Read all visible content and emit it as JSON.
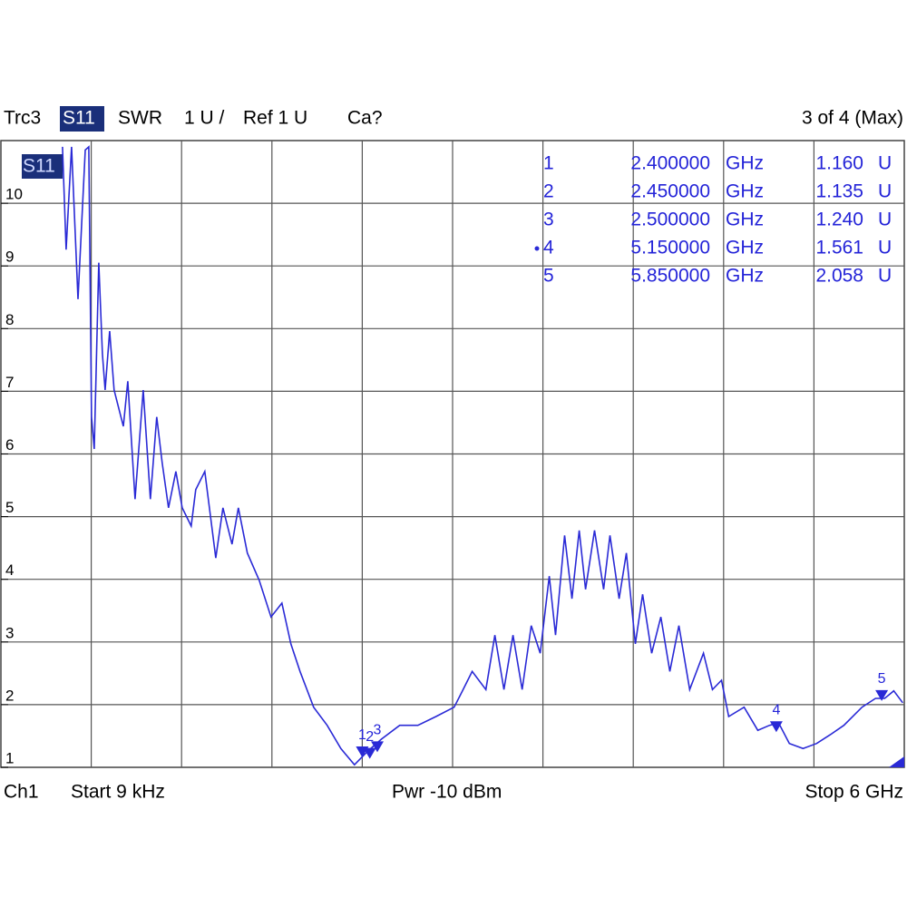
{
  "chart_data": {
    "type": "line",
    "header": {
      "trace": "Trc3",
      "param": "S11",
      "format": "SWR",
      "scale": "1 U /",
      "ref": "Ref 1 U",
      "cal": "Ca?",
      "page": "3 of 4 (Max)"
    },
    "trace_label": "S11",
    "footer": {
      "channel": "Ch1",
      "start": "Start 9 kHz",
      "power": "Pwr -10 dBm",
      "stop": "Stop 6 GHz"
    },
    "xlim": [
      9e-06,
      6
    ],
    "xticks": [
      0.6,
      1.2,
      1.8,
      2.4,
      3.0,
      3.6,
      4.2,
      4.8,
      5.4
    ],
    "ylim": [
      1,
      11
    ],
    "yticks": [
      1,
      2,
      3,
      4,
      5,
      6,
      7,
      8,
      9,
      10
    ],
    "grid": true,
    "series": [
      {
        "name": "Trc3",
        "color": "#2a2ad6",
        "x": [
          0.409,
          0.433,
          0.469,
          0.512,
          0.56,
          0.584,
          0.602,
          0.62,
          0.65,
          0.674,
          0.692,
          0.722,
          0.752,
          0.813,
          0.843,
          0.891,
          0.945,
          0.993,
          1.035,
          1.071,
          1.113,
          1.162,
          1.204,
          1.264,
          1.294,
          1.354,
          1.427,
          1.475,
          1.535,
          1.577,
          1.637,
          1.716,
          1.794,
          1.866,
          1.926,
          1.987,
          2.077,
          2.167,
          2.258,
          2.348,
          2.438,
          2.528,
          2.649,
          2.769,
          2.89,
          3.01,
          3.07,
          3.13,
          3.221,
          3.281,
          3.341,
          3.401,
          3.462,
          3.522,
          3.582,
          3.642,
          3.684,
          3.744,
          3.793,
          3.841,
          3.883,
          3.943,
          4.003,
          4.045,
          4.106,
          4.154,
          4.214,
          4.262,
          4.322,
          4.383,
          4.443,
          4.503,
          4.575,
          4.666,
          4.726,
          4.786,
          4.834,
          4.936,
          5.027,
          5.105,
          5.165,
          5.237,
          5.328,
          5.418,
          5.508,
          5.599,
          5.719,
          5.809,
          5.87,
          5.93,
          5.99
        ],
        "values": [
          10.9,
          9.26,
          10.9,
          8.47,
          10.85,
          10.9,
          6.59,
          6.08,
          9.05,
          7.6,
          7.02,
          7.96,
          7.02,
          6.44,
          7.16,
          5.28,
          7.02,
          5.28,
          6.59,
          5.86,
          5.14,
          5.72,
          5.14,
          4.85,
          5.43,
          5.72,
          4.34,
          5.14,
          4.56,
          5.14,
          4.42,
          3.98,
          3.4,
          3.62,
          2.97,
          2.53,
          1.96,
          1.67,
          1.3,
          1.04,
          1.26,
          1.45,
          1.67,
          1.67,
          1.81,
          1.96,
          2.24,
          2.53,
          2.24,
          3.11,
          2.24,
          3.11,
          2.24,
          3.26,
          2.82,
          4.05,
          3.11,
          4.7,
          3.69,
          4.78,
          3.84,
          4.78,
          3.84,
          4.7,
          3.69,
          4.42,
          2.97,
          3.76,
          2.82,
          3.4,
          2.53,
          3.26,
          2.24,
          2.82,
          2.24,
          2.39,
          1.81,
          1.96,
          1.59,
          1.67,
          1.71,
          1.38,
          1.3,
          1.38,
          1.52,
          1.67,
          1.96,
          2.1,
          2.1,
          2.22,
          2.03
        ]
      }
    ],
    "active_marker": "4",
    "markers": [
      {
        "name": "1",
        "x": 2.4,
        "x_label": "2.400000",
        "x_unit": "GHz",
        "value": 1.16,
        "value_label": "1.160",
        "unit": "U"
      },
      {
        "name": "2",
        "x": 2.45,
        "x_label": "2.450000",
        "x_unit": "GHz",
        "value": 1.135,
        "value_label": "1.135",
        "unit": "U"
      },
      {
        "name": "3",
        "x": 2.5,
        "x_label": "2.500000",
        "x_unit": "GHz",
        "value": 1.24,
        "value_label": "1.240",
        "unit": "U"
      },
      {
        "name": "4",
        "x": 5.15,
        "x_label": "5.150000",
        "x_unit": "GHz",
        "value": 1.561,
        "value_label": "1.561",
        "unit": "U"
      },
      {
        "name": "5",
        "x": 5.85,
        "x_label": "5.850000",
        "x_unit": "GHz",
        "value": 2.058,
        "value_label": "2.058",
        "unit": "U"
      }
    ]
  }
}
